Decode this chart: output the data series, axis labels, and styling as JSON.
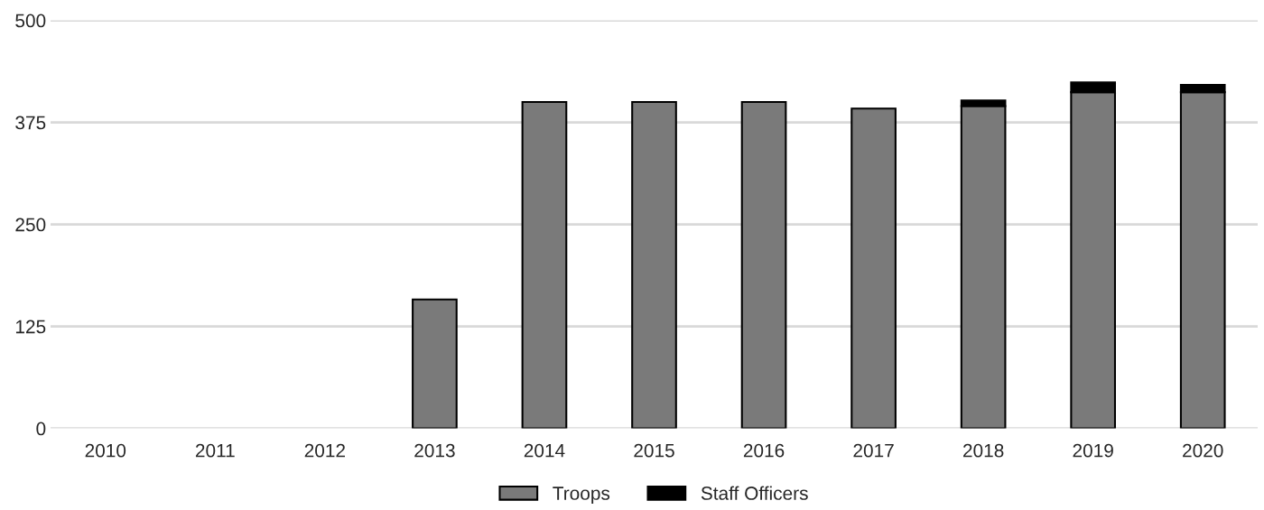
{
  "chart_data": {
    "type": "bar",
    "stacked": true,
    "categories": [
      "2010",
      "2011",
      "2012",
      "2013",
      "2014",
      "2015",
      "2016",
      "2017",
      "2018",
      "2019",
      "2020"
    ],
    "series": [
      {
        "name": "Troops",
        "color": "#7a7a7a",
        "values": [
          null,
          null,
          null,
          158,
          400,
          400,
          400,
          392,
          395,
          412,
          412
        ]
      },
      {
        "name": "Staff Officers",
        "color": "#000000",
        "values": [
          null,
          null,
          null,
          null,
          null,
          null,
          null,
          null,
          7,
          12,
          9
        ]
      }
    ],
    "ylim": [
      0,
      500
    ],
    "yticks": [
      0,
      125,
      250,
      375,
      500
    ],
    "grid": "y",
    "legend": "bottom"
  }
}
